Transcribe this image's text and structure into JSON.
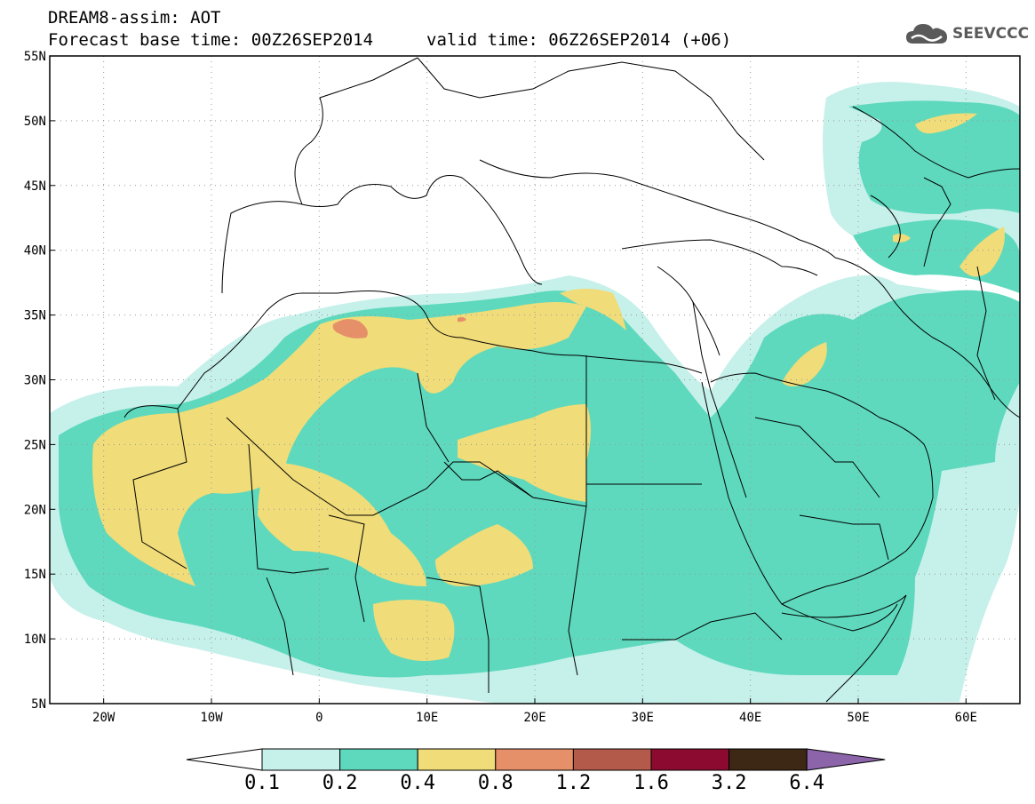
{
  "header": {
    "title": "DREAM8-assim: AOT",
    "base_time": "Forecast base time: 00Z26SEP2014",
    "valid_time": "valid time: 06Z26SEP2014 (+06)",
    "logo_text": "SEEVCCC"
  },
  "map": {
    "variable": "AOT",
    "lon_range": [
      -25,
      65
    ],
    "lat_range": [
      5,
      55
    ],
    "lon_ticks": [
      "20W",
      "10W",
      "0",
      "10E",
      "20E",
      "30E",
      "40E",
      "50E",
      "60E"
    ],
    "lat_ticks": [
      "55N",
      "50N",
      "45N",
      "40N",
      "35N",
      "30N",
      "25N",
      "20N",
      "15N",
      "10N",
      "5N"
    ],
    "grid": true,
    "colors": {
      "c0_1": "#c6f0ea",
      "c0_2": "#5ed9bd",
      "c0_4": "#f0dc78",
      "c0_8": "#e6906a",
      "c1_2": "#b45a4a",
      "c1_6": "#a0503a",
      "c3_2": "#780a2a",
      "c6_4": "#3c2814",
      "over": "#8c64aa"
    }
  },
  "colorbar": {
    "labels": [
      "0.1",
      "0.2",
      "0.4",
      "0.8",
      "1.2",
      "1.6",
      "3.2",
      "6.4"
    ],
    "colors": [
      "#c6f0ea",
      "#5ed9bd",
      "#f0dc78",
      "#e6906a",
      "#b45a4a",
      "#8c0a30",
      "#3c2814"
    ],
    "under_color": "#ffffff",
    "over_color": "#8c64aa"
  }
}
